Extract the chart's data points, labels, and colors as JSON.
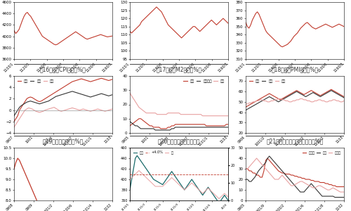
{
  "fig16_title": "图16：各国CPI增速（%）",
  "fig17_title": "图17：各国M2增速（%）",
  "fig18_title": "图18：各国PMI指数（%）",
  "fig19_title": "图19：美国失业率（%）",
  "fig20_title": "图20：彭博全球矿业股指数",
  "fig21_title": "图21：中国固定资产投资增速（%）",
  "line_red": "#c0392b",
  "line_dark": "#333333",
  "line_pink": "#e8a0a0",
  "line_teal": "#1a6b6b",
  "bg_color": "#ffffff",
  "label_color": "#333333",
  "title_fontsize": 5.5,
  "tick_fontsize": 4.0,
  "legend_fontsize": 4.5
}
